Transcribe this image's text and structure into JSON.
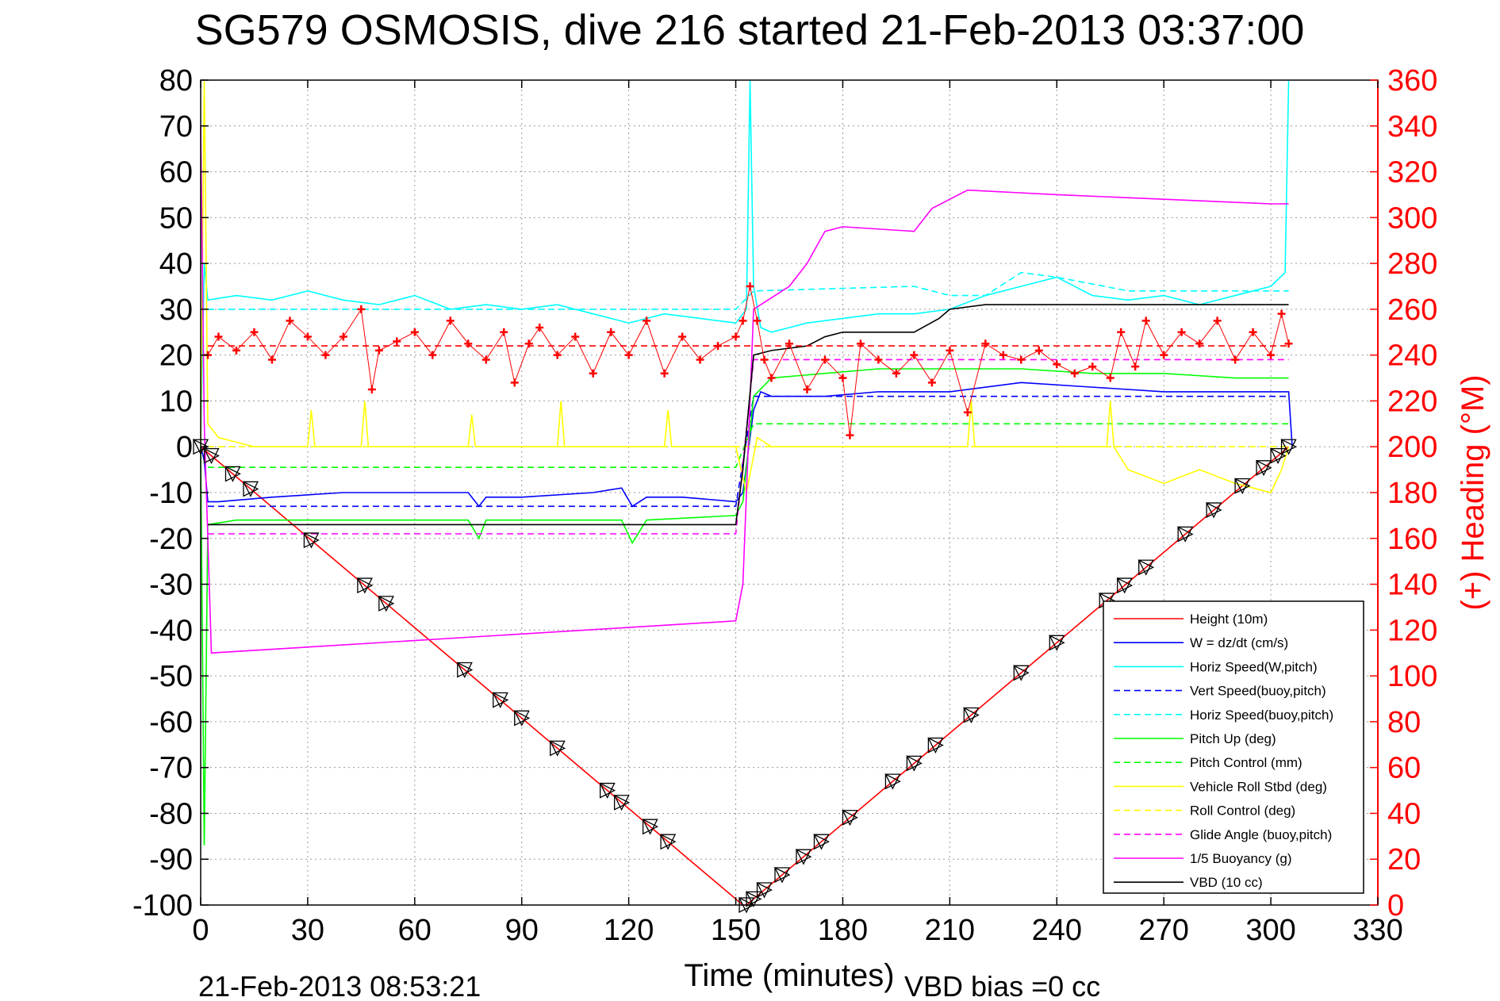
{
  "chart_data": {
    "type": "line",
    "title": "SG579 OSMOSIS, dive 216 started 21-Feb-2013 03:37:00",
    "xlabel": "Time (minutes)",
    "ylabel_right": "(+) Heading (°M)",
    "footer_left": "21-Feb-2013 08:53:21",
    "footer_right": "VBD bias =0 cc",
    "xlim": [
      0,
      330
    ],
    "ylim": [
      -100,
      80
    ],
    "ylim_right": [
      0,
      360
    ],
    "x_ticks": [
      0,
      30,
      60,
      90,
      120,
      150,
      180,
      210,
      240,
      270,
      300,
      330
    ],
    "y_ticks": [
      80,
      70,
      60,
      50,
      40,
      30,
      20,
      10,
      0,
      -10,
      -20,
      -30,
      -40,
      -50,
      -60,
      -70,
      -80,
      -90,
      -100
    ],
    "y_ticks_right": [
      360,
      340,
      320,
      300,
      280,
      260,
      240,
      220,
      200,
      180,
      160,
      140,
      120,
      100,
      80,
      60,
      40,
      20,
      0
    ],
    "x_tick_labels": [
      "0",
      "30",
      "60",
      "90",
      "120",
      "150",
      "180",
      "210",
      "240",
      "270",
      "300",
      "330"
    ],
    "y_tick_labels": [
      "80",
      "70",
      "60",
      "50",
      "40",
      "30",
      "20",
      "10",
      "0",
      "-10",
      "-20",
      "-30",
      "-40",
      "-50",
      "-60",
      "-70",
      "-80",
      "-90",
      "-100"
    ],
    "y_tick_labels_right": [
      "360",
      "340",
      "320",
      "300",
      "280",
      "260",
      "240",
      "220",
      "200",
      "180",
      "160",
      "140",
      "120",
      "100",
      "80",
      "60",
      "40",
      "20",
      "0"
    ],
    "grid": true,
    "legend_position": "bottom-right",
    "series": [
      {
        "name": "Height (10m)",
        "color": "#ff0000",
        "style": "solid",
        "x": [
          0,
          152,
          153,
          305
        ],
        "y": [
          0,
          -100,
          -100,
          0
        ]
      },
      {
        "name": "W  = dz/dt (cm/s)",
        "color": "#0000ff",
        "style": "solid",
        "x": [
          0,
          1,
          2,
          5,
          20,
          40,
          60,
          75,
          78,
          80,
          90,
          110,
          118,
          121,
          125,
          135,
          150,
          152,
          155,
          157,
          160,
          175,
          190,
          210,
          230,
          250,
          270,
          290,
          305,
          306
        ],
        "y": [
          0,
          -3,
          -12,
          -12,
          -11,
          -10,
          -10,
          -10,
          -13,
          -11,
          -11,
          -10,
          -9,
          -13,
          -11,
          -11,
          -12,
          -10,
          8,
          12,
          11,
          11,
          12,
          12,
          14,
          13,
          12,
          12,
          12,
          0
        ]
      },
      {
        "name": "Horiz Speed(W,pitch)",
        "color": "#00ffff",
        "style": "solid",
        "x": [
          0,
          1,
          2,
          10,
          20,
          30,
          40,
          50,
          60,
          70,
          80,
          90,
          100,
          110,
          120,
          130,
          140,
          150,
          153,
          154,
          155,
          157,
          160,
          170,
          180,
          190,
          200,
          210,
          220,
          230,
          240,
          250,
          260,
          270,
          280,
          290,
          300,
          304,
          305
        ],
        "y": [
          0,
          40,
          32,
          33,
          32,
          34,
          32,
          31,
          33,
          30,
          31,
          30,
          31,
          29,
          27,
          29,
          28,
          27,
          30,
          80,
          35,
          26,
          25,
          27,
          28,
          29,
          29,
          30,
          33,
          35,
          37,
          33,
          32,
          33,
          31,
          33,
          35,
          38,
          80
        ]
      },
      {
        "name": "Vert Speed(buoy,pitch)",
        "color": "#0000ff",
        "style": "dashed",
        "x": [
          2,
          150,
          155,
          305
        ],
        "y": [
          -13,
          -13,
          11,
          11
        ]
      },
      {
        "name": "Horiz Speed(buoy,pitch)",
        "color": "#00ffff",
        "style": "dashed",
        "x": [
          2,
          150,
          155,
          200,
          210,
          220,
          230,
          240,
          260,
          305
        ],
        "y": [
          30,
          30,
          34,
          35,
          33,
          33,
          38,
          37,
          34,
          34
        ]
      },
      {
        "name": "Pitch Up (deg)",
        "color": "#00ff00",
        "style": "solid",
        "x": [
          0,
          1,
          2,
          10,
          75,
          78,
          80,
          118,
          121,
          125,
          150,
          152,
          155,
          160,
          190,
          210,
          230,
          250,
          270,
          290,
          305
        ],
        "y": [
          0,
          -87,
          -17,
          -16,
          -16,
          -20,
          -16,
          -16,
          -21,
          -16,
          -15,
          -12,
          11,
          15,
          17,
          17,
          17,
          16,
          16,
          15,
          15
        ]
      },
      {
        "name": "Pitch Control (mm)",
        "color": "#00ff00",
        "style": "dashed",
        "x": [
          2,
          150,
          155,
          305
        ],
        "y": [
          -4.5,
          -4.5,
          5,
          5
        ]
      },
      {
        "name": "Vehicle Roll Stbd (deg)",
        "color": "#ffff00",
        "style": "solid",
        "x": [
          0,
          1,
          2,
          5,
          15,
          30,
          31,
          32,
          45,
          46,
          47,
          60,
          75,
          76,
          77,
          90,
          100,
          101,
          102,
          120,
          130,
          131,
          132,
          150,
          153,
          156,
          160,
          180,
          200,
          210,
          215,
          216,
          217,
          240,
          254,
          255,
          256,
          260,
          270,
          280,
          290,
          300,
          303,
          305
        ],
        "y": [
          0,
          80,
          5,
          2,
          0,
          0,
          8,
          0,
          0,
          10,
          0,
          0,
          0,
          7,
          0,
          0,
          0,
          10,
          0,
          0,
          0,
          8,
          0,
          0,
          -10,
          2,
          0,
          0,
          0,
          0,
          0,
          10,
          0,
          0,
          0,
          10,
          0,
          -5,
          -8,
          -5,
          -8,
          -10,
          -5,
          0
        ]
      },
      {
        "name": "Roll Control (deg)",
        "color": "#ffff00",
        "style": "dashed",
        "x": [
          2,
          150,
          155,
          305
        ],
        "y": [
          0,
          0,
          0,
          0
        ]
      },
      {
        "name": "Glide Angle (buoy,pitch)",
        "color": "#ff00ff",
        "style": "dashed",
        "x": [
          2,
          150,
          155,
          305
        ],
        "y": [
          -19,
          -19,
          19,
          19
        ]
      },
      {
        "name": "1/5 Buoyancy (g)",
        "color": "#ff00ff",
        "style": "solid",
        "x": [
          0,
          1,
          3,
          150,
          152,
          155,
          165,
          170,
          175,
          180,
          200,
          205,
          210,
          215,
          240,
          270,
          300,
          305
        ],
        "y": [
          70,
          5,
          -45,
          -38,
          -30,
          30,
          35,
          40,
          47,
          48,
          47,
          52,
          54,
          56,
          55,
          54,
          53,
          53
        ]
      },
      {
        "name": "VBD (10 cc)",
        "color": "#000000",
        "style": "solid",
        "x": [
          2,
          150,
          152,
          155,
          160,
          170,
          175,
          180,
          200,
          207,
          210,
          220,
          240,
          260,
          300,
          305
        ],
        "y": [
          -17,
          -17,
          -5,
          20,
          21,
          22,
          24,
          25,
          25,
          28,
          30,
          31,
          31,
          31,
          31,
          31
        ]
      },
      {
        "name": "(+) Heading (°M)",
        "color": "#ff0000",
        "style": "markers",
        "axis": "right",
        "x": [
          2,
          5,
          10,
          15,
          20,
          25,
          30,
          35,
          40,
          45,
          48,
          50,
          55,
          60,
          65,
          70,
          75,
          80,
          85,
          88,
          92,
          95,
          100,
          105,
          110,
          115,
          120,
          125,
          130,
          135,
          140,
          145,
          150,
          152,
          154,
          156,
          158,
          160,
          165,
          170,
          175,
          180,
          182,
          185,
          190,
          195,
          200,
          205,
          210,
          215,
          220,
          225,
          230,
          235,
          240,
          245,
          250,
          255,
          258,
          262,
          265,
          270,
          275,
          280,
          285,
          290,
          295,
          300,
          303,
          305
        ],
        "y": [
          240,
          248,
          242,
          250,
          238,
          255,
          248,
          240,
          248,
          260,
          225,
          242,
          246,
          250,
          240,
          255,
          245,
          238,
          250,
          228,
          245,
          252,
          240,
          248,
          232,
          250,
          240,
          255,
          232,
          248,
          238,
          244,
          248,
          255,
          270,
          255,
          238,
          230,
          245,
          225,
          238,
          230,
          205,
          245,
          238,
          232,
          240,
          228,
          242,
          215,
          245,
          240,
          238,
          242,
          236,
          232,
          235,
          230,
          250,
          235,
          255,
          240,
          250,
          245,
          255,
          238,
          250,
          240,
          258,
          245
        ]
      },
      {
        "name": "Heading reference (dashed)",
        "color": "#ff0000",
        "style": "dashed",
        "axis": "right",
        "x": [
          2,
          305
        ],
        "y": [
          244,
          244
        ]
      }
    ],
    "depth_markers": {
      "x": [
        0,
        3,
        9,
        14,
        31,
        46,
        52,
        74,
        84,
        90,
        100,
        114,
        118,
        126,
        131,
        153,
        155,
        158,
        163,
        169,
        174,
        182,
        194,
        200,
        206,
        216,
        230,
        240,
        254,
        259,
        265,
        276,
        284,
        292,
        298,
        302,
        305
      ]
    }
  }
}
